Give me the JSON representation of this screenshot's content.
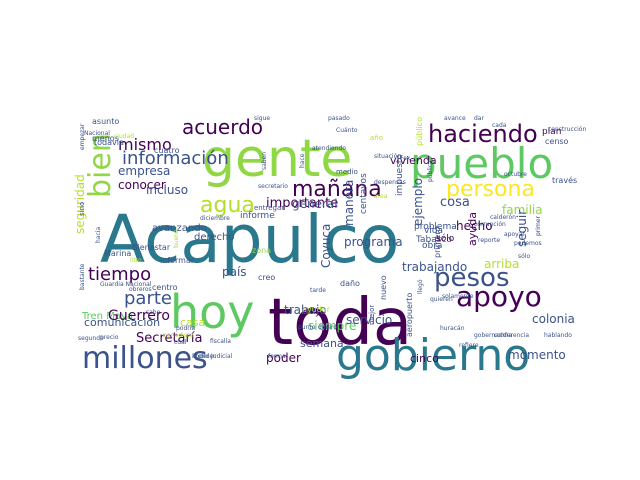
{
  "palette": {
    "dark_purple": "#440154",
    "indigo": "#3b528b",
    "teal": "#21918c",
    "sea_green": "#2a788e",
    "green": "#5ec962",
    "lime": "#8fd744",
    "yellow": "#fde725",
    "olive": "#b5de2b"
  },
  "words": [
    {
      "text": "Acapulco",
      "size": 66,
      "color": "#2a788e"
    },
    {
      "text": "toda",
      "size": 64,
      "color": "#440154"
    },
    {
      "text": "gente",
      "size": 52,
      "color": "#8fd744"
    },
    {
      "text": "hoy",
      "size": 46,
      "color": "#5ec962"
    },
    {
      "text": "gobierno",
      "size": 44,
      "color": "#2a788e"
    },
    {
      "text": "pueblo",
      "size": 42,
      "color": "#5ec962"
    },
    {
      "text": "millones",
      "size": 30,
      "color": "#3b528b"
    },
    {
      "text": "apoyo",
      "size": 28,
      "color": "#440154"
    },
    {
      "text": "pesos",
      "size": 26,
      "color": "#3b528b"
    },
    {
      "text": "bien",
      "size": 30,
      "color": "#8fd744"
    },
    {
      "text": "haciendo",
      "size": 24,
      "color": "#440154"
    },
    {
      "text": "persona",
      "size": 22,
      "color": "#fde725"
    },
    {
      "text": "mañana",
      "size": 22,
      "color": "#440154"
    },
    {
      "text": "agua",
      "size": 22,
      "color": "#b5de2b"
    },
    {
      "text": "acuerdo",
      "size": 20,
      "color": "#440154"
    },
    {
      "text": "información",
      "size": 18,
      "color": "#3b528b"
    },
    {
      "text": "parte",
      "size": 18,
      "color": "#3b528b"
    },
    {
      "text": "tiempo",
      "size": 18,
      "color": "#440154"
    },
    {
      "text": "mismo",
      "size": 16,
      "color": "#440154"
    },
    {
      "text": "empresa",
      "size": 12,
      "color": "#3b528b"
    },
    {
      "text": "conocer",
      "size": 12,
      "color": "#440154"
    },
    {
      "text": "seguridad",
      "size": 12,
      "color": "#b5de2b"
    },
    {
      "text": "incluso",
      "size": 12,
      "color": "#3b528b"
    },
    {
      "text": "comunicación",
      "size": 11,
      "color": "#3b528b"
    },
    {
      "text": "Tren Maya",
      "size": 10,
      "color": "#5ec962"
    },
    {
      "text": "Guerrero",
      "size": 14,
      "color": "#440154"
    },
    {
      "text": "Secretaría",
      "size": 13,
      "color": "#440154"
    },
    {
      "text": "avanzando",
      "size": 10,
      "color": "#3b528b"
    },
    {
      "text": "derecho",
      "size": 10,
      "color": "#3b528b"
    },
    {
      "text": "casa",
      "size": 11,
      "color": "#b5de2b"
    },
    {
      "text": "país",
      "size": 12,
      "color": "#3b528b"
    },
    {
      "text": "informe",
      "size": 9,
      "color": "#3b528b"
    },
    {
      "text": "importante",
      "size": 13,
      "color": "#440154"
    },
    {
      "text": "general",
      "size": 12,
      "color": "#3b528b"
    },
    {
      "text": "familia",
      "size": 12,
      "color": "#8fd744"
    },
    {
      "text": "seguir",
      "size": 12,
      "color": "#3b528b"
    },
    {
      "text": "hecho",
      "size": 12,
      "color": "#440154"
    },
    {
      "text": "arriba",
      "size": 12,
      "color": "#b5de2b"
    },
    {
      "text": "cosa",
      "size": 13,
      "color": "#3b528b"
    },
    {
      "text": "vivienda",
      "size": 11,
      "color": "#440154"
    },
    {
      "text": "ejemplo",
      "size": 12,
      "color": "#3b528b"
    },
    {
      "text": "ayuda",
      "size": 11,
      "color": "#440154"
    },
    {
      "text": "trabajando",
      "size": 12,
      "color": "#3b528b"
    },
    {
      "text": "programa",
      "size": 12,
      "color": "#3b528b"
    },
    {
      "text": "Coyuca",
      "size": 12,
      "color": "#3b528b"
    },
    {
      "text": "trabajo",
      "size": 12,
      "color": "#3b528b"
    },
    {
      "text": "siempre",
      "size": 12,
      "color": "#5ec962"
    },
    {
      "text": "semana",
      "size": 11,
      "color": "#3b528b"
    },
    {
      "text": "poder",
      "size": 12,
      "color": "#440154"
    },
    {
      "text": "cinco",
      "size": 11,
      "color": "#440154"
    },
    {
      "text": "momento",
      "size": 12,
      "color": "#3b528b"
    },
    {
      "text": "servicio",
      "size": 12,
      "color": "#3b528b"
    },
    {
      "text": "colonia",
      "size": 12,
      "color": "#3b528b"
    },
    {
      "text": "manera",
      "size": 12,
      "color": "#3b528b"
    },
    {
      "text": "centavos",
      "size": 9,
      "color": "#3b528b"
    },
    {
      "text": "impuesto",
      "size": 9,
      "color": "#3b528b"
    },
    {
      "text": "Tabasco",
      "size": 9,
      "color": "#3b528b"
    },
    {
      "text": "problema",
      "size": 9,
      "color": "#3b528b"
    },
    {
      "text": "primero",
      "size": 8,
      "color": "#3b528b"
    },
    {
      "text": "obra",
      "size": 9,
      "color": "#3b528b"
    },
    {
      "text": "vida",
      "size": 9,
      "color": "#3b528b"
    },
    {
      "text": "sólo",
      "size": 9,
      "color": "#440154"
    },
    {
      "text": "plan",
      "size": 9,
      "color": "#440154"
    },
    {
      "text": "censo",
      "size": 8,
      "color": "#3b528b"
    },
    {
      "text": "través",
      "size": 8,
      "color": "#3b528b"
    },
    {
      "text": "público",
      "size": 8,
      "color": "#b5de2b"
    },
    {
      "text": "medio",
      "size": 7,
      "color": "#3b528b"
    },
    {
      "text": "zona",
      "size": 8,
      "color": "#8fd744"
    },
    {
      "text": "creo",
      "size": 8,
      "color": "#3b528b"
    },
    {
      "text": "centro",
      "size": 8,
      "color": "#3b528b"
    },
    {
      "text": "daño",
      "size": 8,
      "color": "#3b528b"
    },
    {
      "text": "ayudar",
      "size": 8,
      "color": "#b5de2b"
    },
    {
      "text": "nuevo",
      "size": 8,
      "color": "#3b528b"
    },
    {
      "text": "mejor",
      "size": 7,
      "color": "#3b528b"
    },
    {
      "text": "aeropuerto",
      "size": 8,
      "color": "#3b528b"
    },
    {
      "text": "asunto",
      "size": 8,
      "color": "#3b528b"
    },
    {
      "text": "menos",
      "size": 8,
      "color": "#3b528b"
    },
    {
      "text": "todavía",
      "size": 8,
      "color": "#3b528b"
    },
    {
      "text": "cuatro",
      "size": 8,
      "color": "#3b528b"
    },
    {
      "text": "sino",
      "size": 7,
      "color": "#3b528b"
    },
    {
      "text": "informar",
      "size": 8,
      "color": "#3b528b"
    },
    {
      "text": "Marina",
      "size": 8,
      "color": "#3b528b"
    },
    {
      "text": "Bienestar",
      "size": 8,
      "color": "#3b528b"
    },
    {
      "text": "Guardia Nacional",
      "size": 6,
      "color": "#3b528b"
    },
    {
      "text": "podría",
      "size": 6,
      "color": "#3b528b"
    },
    {
      "text": "punto",
      "size": 6,
      "color": "#3b528b"
    },
    {
      "text": "dinero",
      "size": 6,
      "color": "#3b528b"
    },
    {
      "text": "cual",
      "size": 6,
      "color": "#3b528b"
    },
    {
      "text": "fiscalía",
      "size": 6,
      "color": "#3b528b"
    },
    {
      "text": "forma",
      "size": 6,
      "color": "#3b528b"
    },
    {
      "text": "huracán",
      "size": 6,
      "color": "#3b528b"
    },
    {
      "text": "gobernadora",
      "size": 6,
      "color": "#3b528b"
    },
    {
      "text": "conferencia",
      "size": 6,
      "color": "#3b528b"
    },
    {
      "text": "hablando",
      "size": 6,
      "color": "#3b528b"
    },
    {
      "text": "refiere",
      "size": 6,
      "color": "#3b528b"
    },
    {
      "text": "segundo",
      "size": 6,
      "color": "#3b528b"
    },
    {
      "text": "tarde",
      "size": 6,
      "color": "#3b528b"
    },
    {
      "text": "llegó",
      "size": 6,
      "color": "#3b528b"
    },
    {
      "text": "quieren",
      "size": 6,
      "color": "#3b528b"
    },
    {
      "text": "atender",
      "size": 6,
      "color": "#3b528b"
    },
    {
      "text": "Poder Judicial",
      "size": 6,
      "color": "#3b528b"
    },
    {
      "text": "precio",
      "size": 6,
      "color": "#3b528b"
    },
    {
      "text": "bastante",
      "size": 6,
      "color": "#3b528b"
    },
    {
      "text": "hacia",
      "size": 6,
      "color": "#3b528b"
    },
    {
      "text": "secretario",
      "size": 6,
      "color": "#3b528b"
    },
    {
      "text": "diciembre",
      "size": 6,
      "color": "#3b528b"
    },
    {
      "text": "situación",
      "size": 6,
      "color": "#3b528b"
    },
    {
      "text": "Fox",
      "size": 6,
      "color": "#3b528b"
    },
    {
      "text": "despensas",
      "size": 6,
      "color": "#3b528b"
    },
    {
      "text": "sigue",
      "size": 6,
      "color": "#3b528b"
    },
    {
      "text": "pasado",
      "size": 6,
      "color": "#3b528b"
    },
    {
      "text": "Cuánto",
      "size": 6,
      "color": "#3b528b"
    },
    {
      "text": "avance",
      "size": 6,
      "color": "#3b528b"
    },
    {
      "text": "dar",
      "size": 6,
      "color": "#3b528b"
    },
    {
      "text": "cada",
      "size": 6,
      "color": "#3b528b"
    },
    {
      "text": "octubre",
      "size": 6,
      "color": "#3b528b"
    },
    {
      "text": "construcción",
      "size": 6,
      "color": "#3b528b"
    },
    {
      "text": "empezar",
      "size": 6,
      "color": "#3b528b"
    },
    {
      "text": "Nacional",
      "size": 6,
      "color": "#3b528b"
    },
    {
      "text": "ciudad",
      "size": 6,
      "color": "#b5de2b"
    },
    {
      "text": "atendiendo",
      "size": 6,
      "color": "#3b528b"
    },
    {
      "text": "hace",
      "size": 6,
      "color": "#3b528b"
    },
    {
      "text": "saben",
      "size": 6,
      "color": "#3b528b"
    },
    {
      "text": "área",
      "size": 6,
      "color": "#b5de2b"
    },
    {
      "text": "corrupción",
      "size": 6,
      "color": "#3b528b"
    },
    {
      "text": "calderón",
      "size": 6,
      "color": "#3b528b"
    },
    {
      "text": "sólo",
      "size": 6,
      "color": "#3b528b"
    },
    {
      "text": "podemos",
      "size": 6,
      "color": "#3b528b"
    },
    {
      "text": "apoyar",
      "size": 6,
      "color": "#3b528b"
    },
    {
      "text": "primer",
      "size": 6,
      "color": "#3b528b"
    },
    {
      "text": "buena",
      "size": 6,
      "color": "#b5de2b"
    },
    {
      "text": "litro",
      "size": 6,
      "color": "#b5de2b"
    },
    {
      "text": "solamente",
      "size": 6,
      "color": "#3b528b"
    },
    {
      "text": "reporte",
      "size": 6,
      "color": "#3b528b"
    },
    {
      "text": "pública",
      "size": 6,
      "color": "#3b528b"
    },
    {
      "text": "entregar",
      "size": 7,
      "color": "#3b528b"
    },
    {
      "text": "año",
      "size": 7,
      "color": "#b5de2b"
    },
    {
      "text": "obreros",
      "size": 6,
      "color": "#3b528b"
    },
    {
      "text": "sabe",
      "size": 6,
      "color": "#3b528b"
    },
    {
      "text": "periodista",
      "size": 6,
      "color": "#b5de2b"
    }
  ]
}
